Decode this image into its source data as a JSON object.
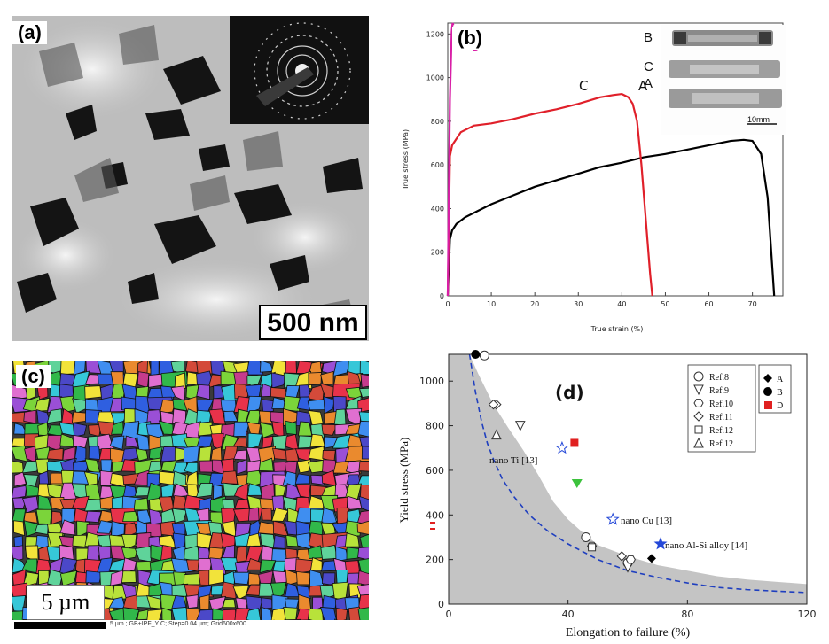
{
  "figure": {
    "panel_a": {
      "label": "(a)",
      "scale_bar": "500 nm"
    },
    "panel_b": {
      "label": "(b)",
      "inset_labels": [
        "B",
        "C",
        "A"
      ],
      "inset_scale": "10mm",
      "curve_labels": [
        "C",
        "A",
        "A",
        "B"
      ]
    },
    "panel_c": {
      "label": "(c)",
      "scale_bar": "5 µm",
      "footer_text": "5 µm ; GB+IPF_Y C; Step=0.04 µm; Grid600x600"
    },
    "panel_d": {
      "label": "(d)",
      "annotations": [
        "nano Ti [13]",
        "nano Cu [13]",
        "nano Al-Si alloy [14]"
      ],
      "legend_left": [
        "Ref.8",
        "Ref.9",
        "Ref.10",
        "Ref.11",
        "Ref.12",
        "Ref.12"
      ],
      "legend_right": [
        "A",
        "B",
        "D"
      ]
    }
  },
  "chart_data": [
    {
      "type": "line",
      "title": "",
      "xlabel": "True strain (%)",
      "ylabel": "True stress (MPa)",
      "xlim": [
        0,
        77
      ],
      "ylim": [
        0,
        1250
      ],
      "xticks": [
        "0",
        "10",
        "20",
        "30",
        "40",
        "50",
        "60",
        "70"
      ],
      "yticks": [
        "0",
        "200",
        "400",
        "600",
        "800",
        "1000",
        "1200"
      ],
      "series": [
        {
          "name": "A",
          "color": "#000000",
          "x": [
            0,
            0.5,
            1,
            2,
            4,
            7,
            10,
            15,
            20,
            25,
            30,
            35,
            40,
            45,
            50,
            55,
            60,
            65,
            68,
            70,
            72,
            73.5,
            74.5,
            75
          ],
          "y": [
            0,
            260,
            300,
            330,
            360,
            390,
            420,
            460,
            500,
            530,
            560,
            590,
            610,
            635,
            650,
            670,
            690,
            710,
            715,
            710,
            650,
            450,
            150,
            0
          ]
        },
        {
          "name": "C",
          "color": "#e0202a",
          "x": [
            0,
            0.5,
            1,
            3,
            6,
            10,
            15,
            20,
            25,
            30,
            35,
            38,
            40,
            41.5,
            42.5,
            43.5,
            44.5,
            45.5,
            46.5,
            47
          ],
          "y": [
            0,
            640,
            690,
            750,
            780,
            790,
            810,
            835,
            855,
            880,
            910,
            920,
            925,
            910,
            880,
            800,
            600,
            350,
            100,
            0
          ]
        },
        {
          "name": "B",
          "color": "#d81ea6",
          "x": [
            0,
            0.2,
            0.5,
            0.9,
            1.1,
            1.3
          ],
          "y": [
            0,
            400,
            900,
            1210,
            1250,
            1240
          ]
        }
      ]
    },
    {
      "type": "scatter",
      "title": "",
      "xlabel": "Elongation to failure (%)",
      "ylabel": "Yield stress (MPa)",
      "xlim": [
        0,
        120
      ],
      "ylim": [
        0,
        1120
      ],
      "xticks": [
        "0",
        "40",
        "80",
        "120"
      ],
      "yticks": [
        "0",
        "200",
        "400",
        "600",
        "800",
        "1000"
      ],
      "series": [
        {
          "name": "Ref.8",
          "marker": "circle",
          "x": [
            12,
            46,
            60
          ],
          "y": [
            1115,
            300,
            185
          ]
        },
        {
          "name": "Ref.9",
          "marker": "triangle-down",
          "x": [
            24,
            60
          ],
          "y": [
            800,
            165
          ]
        },
        {
          "name": "Ref.10",
          "marker": "hexagon",
          "x": [
            48,
            61
          ],
          "y": [
            260,
            200
          ]
        },
        {
          "name": "Ref.11",
          "marker": "diamond",
          "x": [
            16,
            15,
            58
          ],
          "y": [
            895,
            895,
            215
          ]
        },
        {
          "name": "Ref.12",
          "marker": "square",
          "x": [
            48
          ],
          "y": [
            255
          ]
        },
        {
          "name": "Ref.12",
          "marker": "triangle-up",
          "x": [
            16
          ],
          "y": [
            760
          ]
        },
        {
          "name": "A",
          "marker": "diamond-filled",
          "x": [
            68
          ],
          "y": [
            205
          ]
        },
        {
          "name": "B",
          "marker": "circle-filled",
          "x": [
            9
          ],
          "y": [
            1120
          ]
        },
        {
          "name": "D",
          "marker": "square-red",
          "x": [
            42
          ],
          "y": [
            725
          ]
        },
        {
          "name": "nano Ti [13]",
          "marker": "star-open",
          "x": [
            38
          ],
          "y": [
            700
          ]
        },
        {
          "name": "nano Cu [13]",
          "marker": "star-open",
          "x": [
            55
          ],
          "y": [
            380
          ]
        },
        {
          "name": "nano Al-Si alloy [14]",
          "marker": "star-filled",
          "x": [
            71
          ],
          "y": [
            270
          ]
        },
        {
          "name": "",
          "marker": "triangle-down-green",
          "x": [
            43
          ],
          "y": [
            540
          ]
        }
      ],
      "envelope_boundary": {
        "x": [
          0,
          7,
          10,
          15,
          20,
          25,
          30,
          35,
          40,
          45,
          50,
          60,
          70,
          80,
          90,
          100,
          110,
          120
        ],
        "y": [
          1120,
          1120,
          1030,
          895,
          790,
          690,
          580,
          460,
          380,
          320,
          265,
          215,
          175,
          150,
          125,
          110,
          100,
          90
        ]
      },
      "dashed_trend": {
        "x": [
          7,
          9,
          11,
          13,
          15,
          18,
          22,
          27,
          33,
          40,
          50,
          60,
          70,
          80,
          90,
          100,
          110,
          120
        ],
        "y": [
          1120,
          950,
          820,
          720,
          650,
          560,
          480,
          400,
          330,
          270,
          200,
          150,
          120,
          95,
          75,
          65,
          58,
          52
        ]
      }
    }
  ]
}
